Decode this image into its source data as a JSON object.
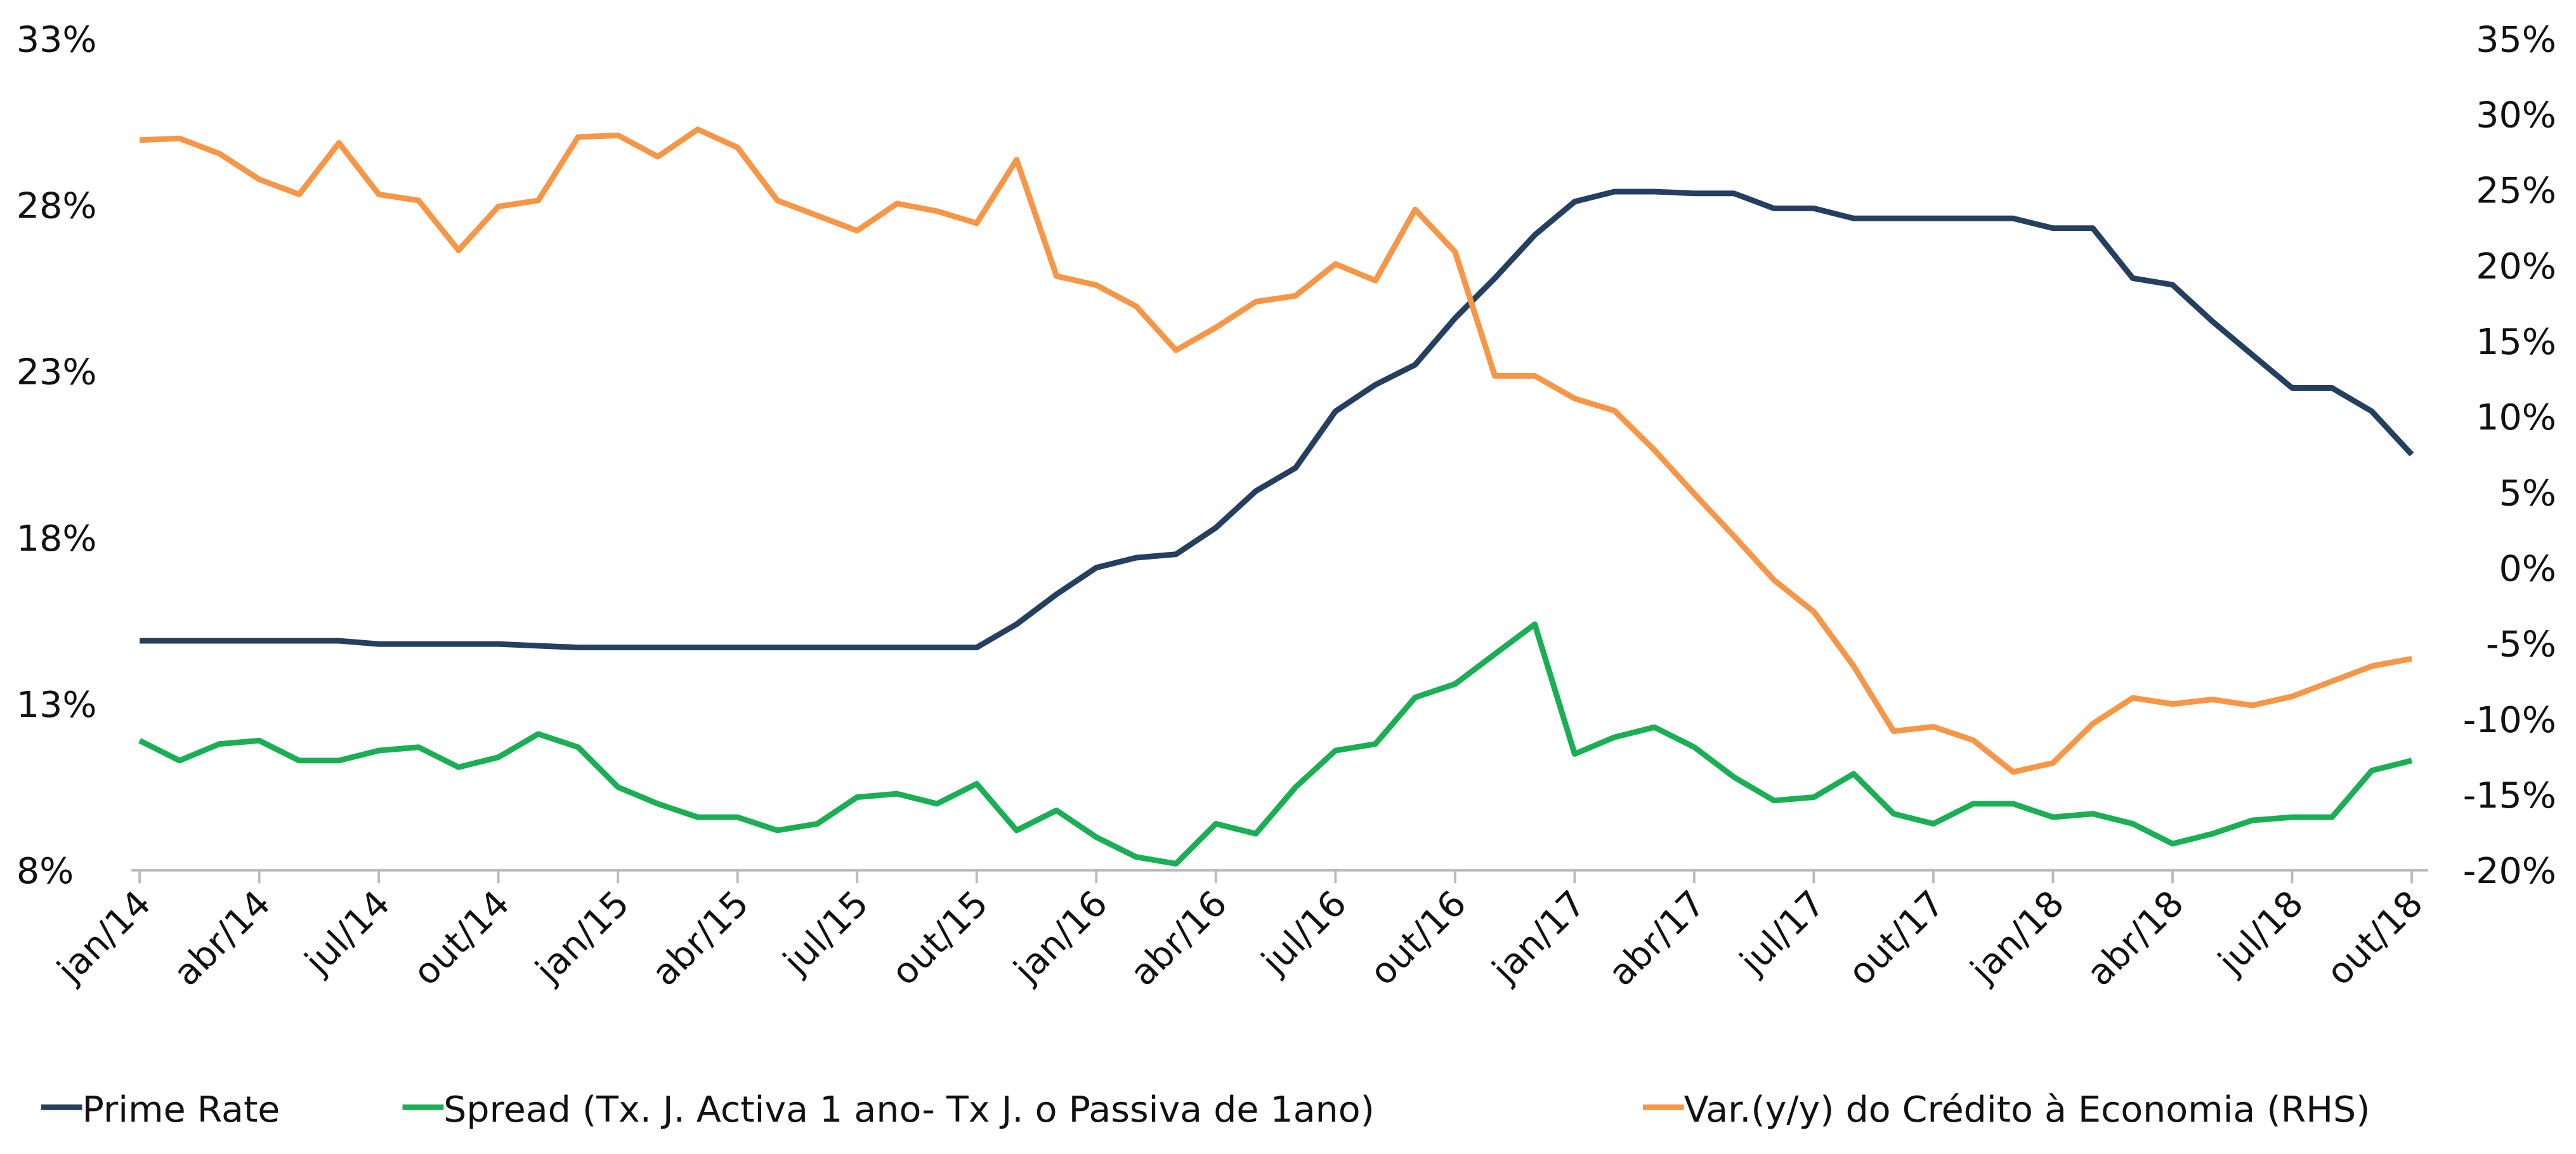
{
  "chart_data": {
    "type": "line",
    "categories": [
      "jan/14",
      null,
      null,
      "abr/14",
      null,
      null,
      "jul/14",
      null,
      null,
      "out/14",
      null,
      null,
      "jan/15",
      null,
      null,
      "abr/15",
      null,
      null,
      "jul/15",
      null,
      null,
      "out/15",
      null,
      null,
      "jan/16",
      null,
      null,
      "abr/16",
      null,
      null,
      "jul/16",
      null,
      null,
      "out/16",
      null,
      null,
      "jan/17",
      null,
      null,
      "abr/17",
      null,
      null,
      "jul/17",
      null,
      null,
      "out/17",
      null,
      null,
      "jan/18",
      null,
      null,
      "abr/18",
      null,
      null,
      "jul/18",
      null,
      null,
      "out/18"
    ],
    "series": [
      {
        "name": "Prime Rate",
        "color": "#243f60",
        "values": [
          14.9,
          14.9,
          14.9,
          14.9,
          14.9,
          14.9,
          14.8,
          14.8,
          14.8,
          14.8,
          14.75,
          14.7,
          14.7,
          14.7,
          14.7,
          14.7,
          14.7,
          14.7,
          14.7,
          14.7,
          14.7,
          14.7,
          15.4,
          16.3,
          17.1,
          17.4,
          17.5,
          18.3,
          19.4,
          20.1,
          21.8,
          22.6,
          23.2,
          24.6,
          25.8,
          27.1,
          28.1,
          28.4,
          28.4,
          28.35,
          28.35,
          27.9,
          27.9,
          27.6,
          27.6,
          27.6,
          27.6,
          27.6,
          27.3,
          27.3,
          25.8,
          25.6,
          24.5,
          23.5,
          22.5,
          22.5,
          21.8,
          20.5
        ]
      },
      {
        "name": "Spread (Tx. J. Activa 1 ano- Tx J. o Passiva de 1ano)",
        "color": "#1aaf54",
        "values": [
          11.9,
          11.3,
          11.8,
          11.9,
          11.3,
          11.3,
          11.6,
          11.7,
          11.1,
          11.4,
          12.1,
          11.7,
          10.5,
          10.0,
          9.6,
          9.6,
          9.2,
          9.4,
          10.2,
          10.3,
          10.0,
          10.6,
          9.2,
          9.8,
          9.0,
          8.4,
          8.2,
          9.4,
          9.1,
          10.5,
          11.6,
          11.8,
          13.2,
          13.6,
          14.5,
          15.4,
          11.5,
          12.0,
          12.3,
          11.7,
          10.8,
          10.1,
          10.2,
          10.9,
          9.7,
          9.4,
          10.0,
          10.0,
          9.6,
          9.7,
          9.4,
          8.8,
          9.1,
          9.5,
          9.6,
          9.6,
          11.0,
          11.3
        ]
      },
      {
        "name": "Var.(y/y) do Crédito à Economia (RHS)",
        "color": "#f79646",
        "axis": "y2",
        "values": [
          28.3,
          28.4,
          27.4,
          25.7,
          24.7,
          28.1,
          24.7,
          24.3,
          21.0,
          23.9,
          24.3,
          28.5,
          28.6,
          27.2,
          29.0,
          27.8,
          24.3,
          23.3,
          22.3,
          24.1,
          23.6,
          22.8,
          27.0,
          19.3,
          18.7,
          17.3,
          14.4,
          15.9,
          17.6,
          18.0,
          20.1,
          19.0,
          23.7,
          20.9,
          12.7,
          12.7,
          11.2,
          10.4,
          7.8,
          4.9,
          2.1,
          -0.8,
          -2.9,
          -6.5,
          -10.8,
          -10.5,
          -11.4,
          -13.5,
          -12.9,
          -10.3,
          -8.6,
          -9.0,
          -8.7,
          -9.1,
          -8.5,
          -7.5,
          -6.5,
          -6.0
        ]
      }
    ],
    "ylim": [
      8,
      33
    ],
    "yticks": [
      {
        "value": 8,
        "label": "8%"
      },
      {
        "value": 13,
        "label": "13%"
      },
      {
        "value": 18,
        "label": "18%"
      },
      {
        "value": 23,
        "label": "23%"
      },
      {
        "value": 28,
        "label": "28%"
      },
      {
        "value": 33,
        "label": "33%"
      }
    ],
    "y2lim": [
      -20,
      35
    ],
    "y2ticks": [
      {
        "value": -20,
        "label": "-20%"
      },
      {
        "value": -15,
        "label": "-15%"
      },
      {
        "value": -10,
        "label": "-10%"
      },
      {
        "value": -5,
        "label": "-5%"
      },
      {
        "value": 0,
        "label": "0%"
      },
      {
        "value": 5,
        "label": "5%"
      },
      {
        "value": 10,
        "label": "10%"
      },
      {
        "value": 15,
        "label": "15%"
      },
      {
        "value": 20,
        "label": "20%"
      },
      {
        "value": 25,
        "label": "25%"
      },
      {
        "value": 30,
        "label": "30%"
      },
      {
        "value": 35,
        "label": "35%"
      }
    ],
    "legend": "bottom"
  }
}
